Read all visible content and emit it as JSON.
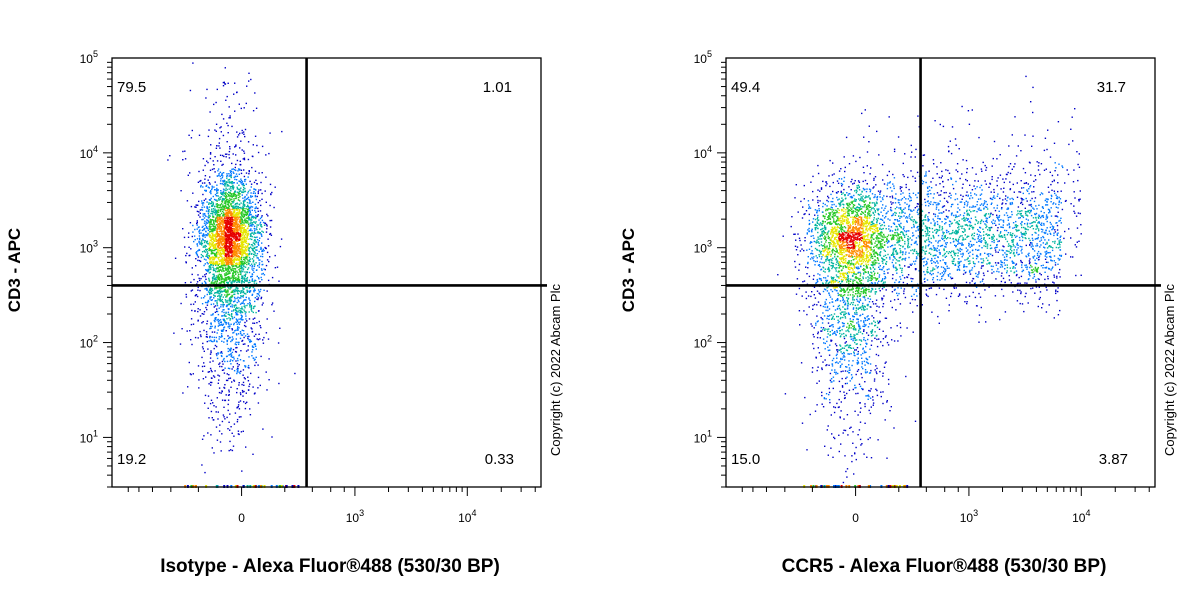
{
  "chart_data": [
    {
      "type": "scatter",
      "style": "flow-cytometry density dot plot with quadrant gate",
      "xlabel": "Isotype - Alexa Fluor®488 (530/30 BP)",
      "ylabel": "CD3 - APC",
      "x_scale": "biexponential",
      "y_scale": "log",
      "x_ticks": [
        {
          "value": 0,
          "base": "0",
          "exp": ""
        },
        {
          "value": 1000,
          "base": "10",
          "exp": "3"
        },
        {
          "value": 10000,
          "base": "10",
          "exp": "4"
        }
      ],
      "y_ticks": [
        {
          "value": 10,
          "base": "10",
          "exp": "1"
        },
        {
          "value": 100,
          "base": "10",
          "exp": "2"
        },
        {
          "value": 1000,
          "base": "10",
          "exp": "3"
        },
        {
          "value": 10000,
          "base": "10",
          "exp": "4"
        },
        {
          "value": 100000,
          "base": "10",
          "exp": "5"
        }
      ],
      "ylim": [
        3,
        100000
      ],
      "gate": {
        "x": 350,
        "y": 400
      },
      "quadrants": {
        "top_left": "79.5",
        "top_right": "1.01",
        "bottom_left": "19.2",
        "bottom_right": "0.33"
      },
      "population": {
        "x_center": -50,
        "y_center": 1300,
        "spread": "narrow"
      },
      "copyright": "Copyright (c) 2022 Abcam Plc",
      "density_colors": [
        "#0000c8",
        "#0078ff",
        "#00b4a0",
        "#28c828",
        "#e6e600",
        "#ff8c00",
        "#e60000"
      ]
    },
    {
      "type": "scatter",
      "style": "flow-cytometry density dot plot with quadrant gate",
      "xlabel": "CCR5 - Alexa Fluor®488 (530/30 BP)",
      "ylabel": "CD3 - APC",
      "x_scale": "biexponential",
      "y_scale": "log",
      "x_ticks": [
        {
          "value": 0,
          "base": "0",
          "exp": ""
        },
        {
          "value": 1000,
          "base": "10",
          "exp": "3"
        },
        {
          "value": 10000,
          "base": "10",
          "exp": "4"
        }
      ],
      "y_ticks": [
        {
          "value": 10,
          "base": "10",
          "exp": "1"
        },
        {
          "value": 100,
          "base": "10",
          "exp": "2"
        },
        {
          "value": 1000,
          "base": "10",
          "exp": "3"
        },
        {
          "value": 10000,
          "base": "10",
          "exp": "4"
        },
        {
          "value": 100000,
          "base": "10",
          "exp": "5"
        }
      ],
      "ylim": [
        3,
        100000
      ],
      "gate": {
        "x": 350,
        "y": 400
      },
      "quadrants": {
        "top_left": "49.4",
        "top_right": "31.7",
        "bottom_left": "15.0",
        "bottom_right": "3.87"
      },
      "population": {
        "x_center": -20,
        "y_center": 1300,
        "spread": "wide",
        "tail_to_x": 5000
      },
      "copyright": "Copyright (c) 2022 Abcam Plc",
      "density_colors": [
        "#0000c8",
        "#0078ff",
        "#00b4a0",
        "#28c828",
        "#e6e600",
        "#ff8c00",
        "#e60000"
      ]
    }
  ]
}
